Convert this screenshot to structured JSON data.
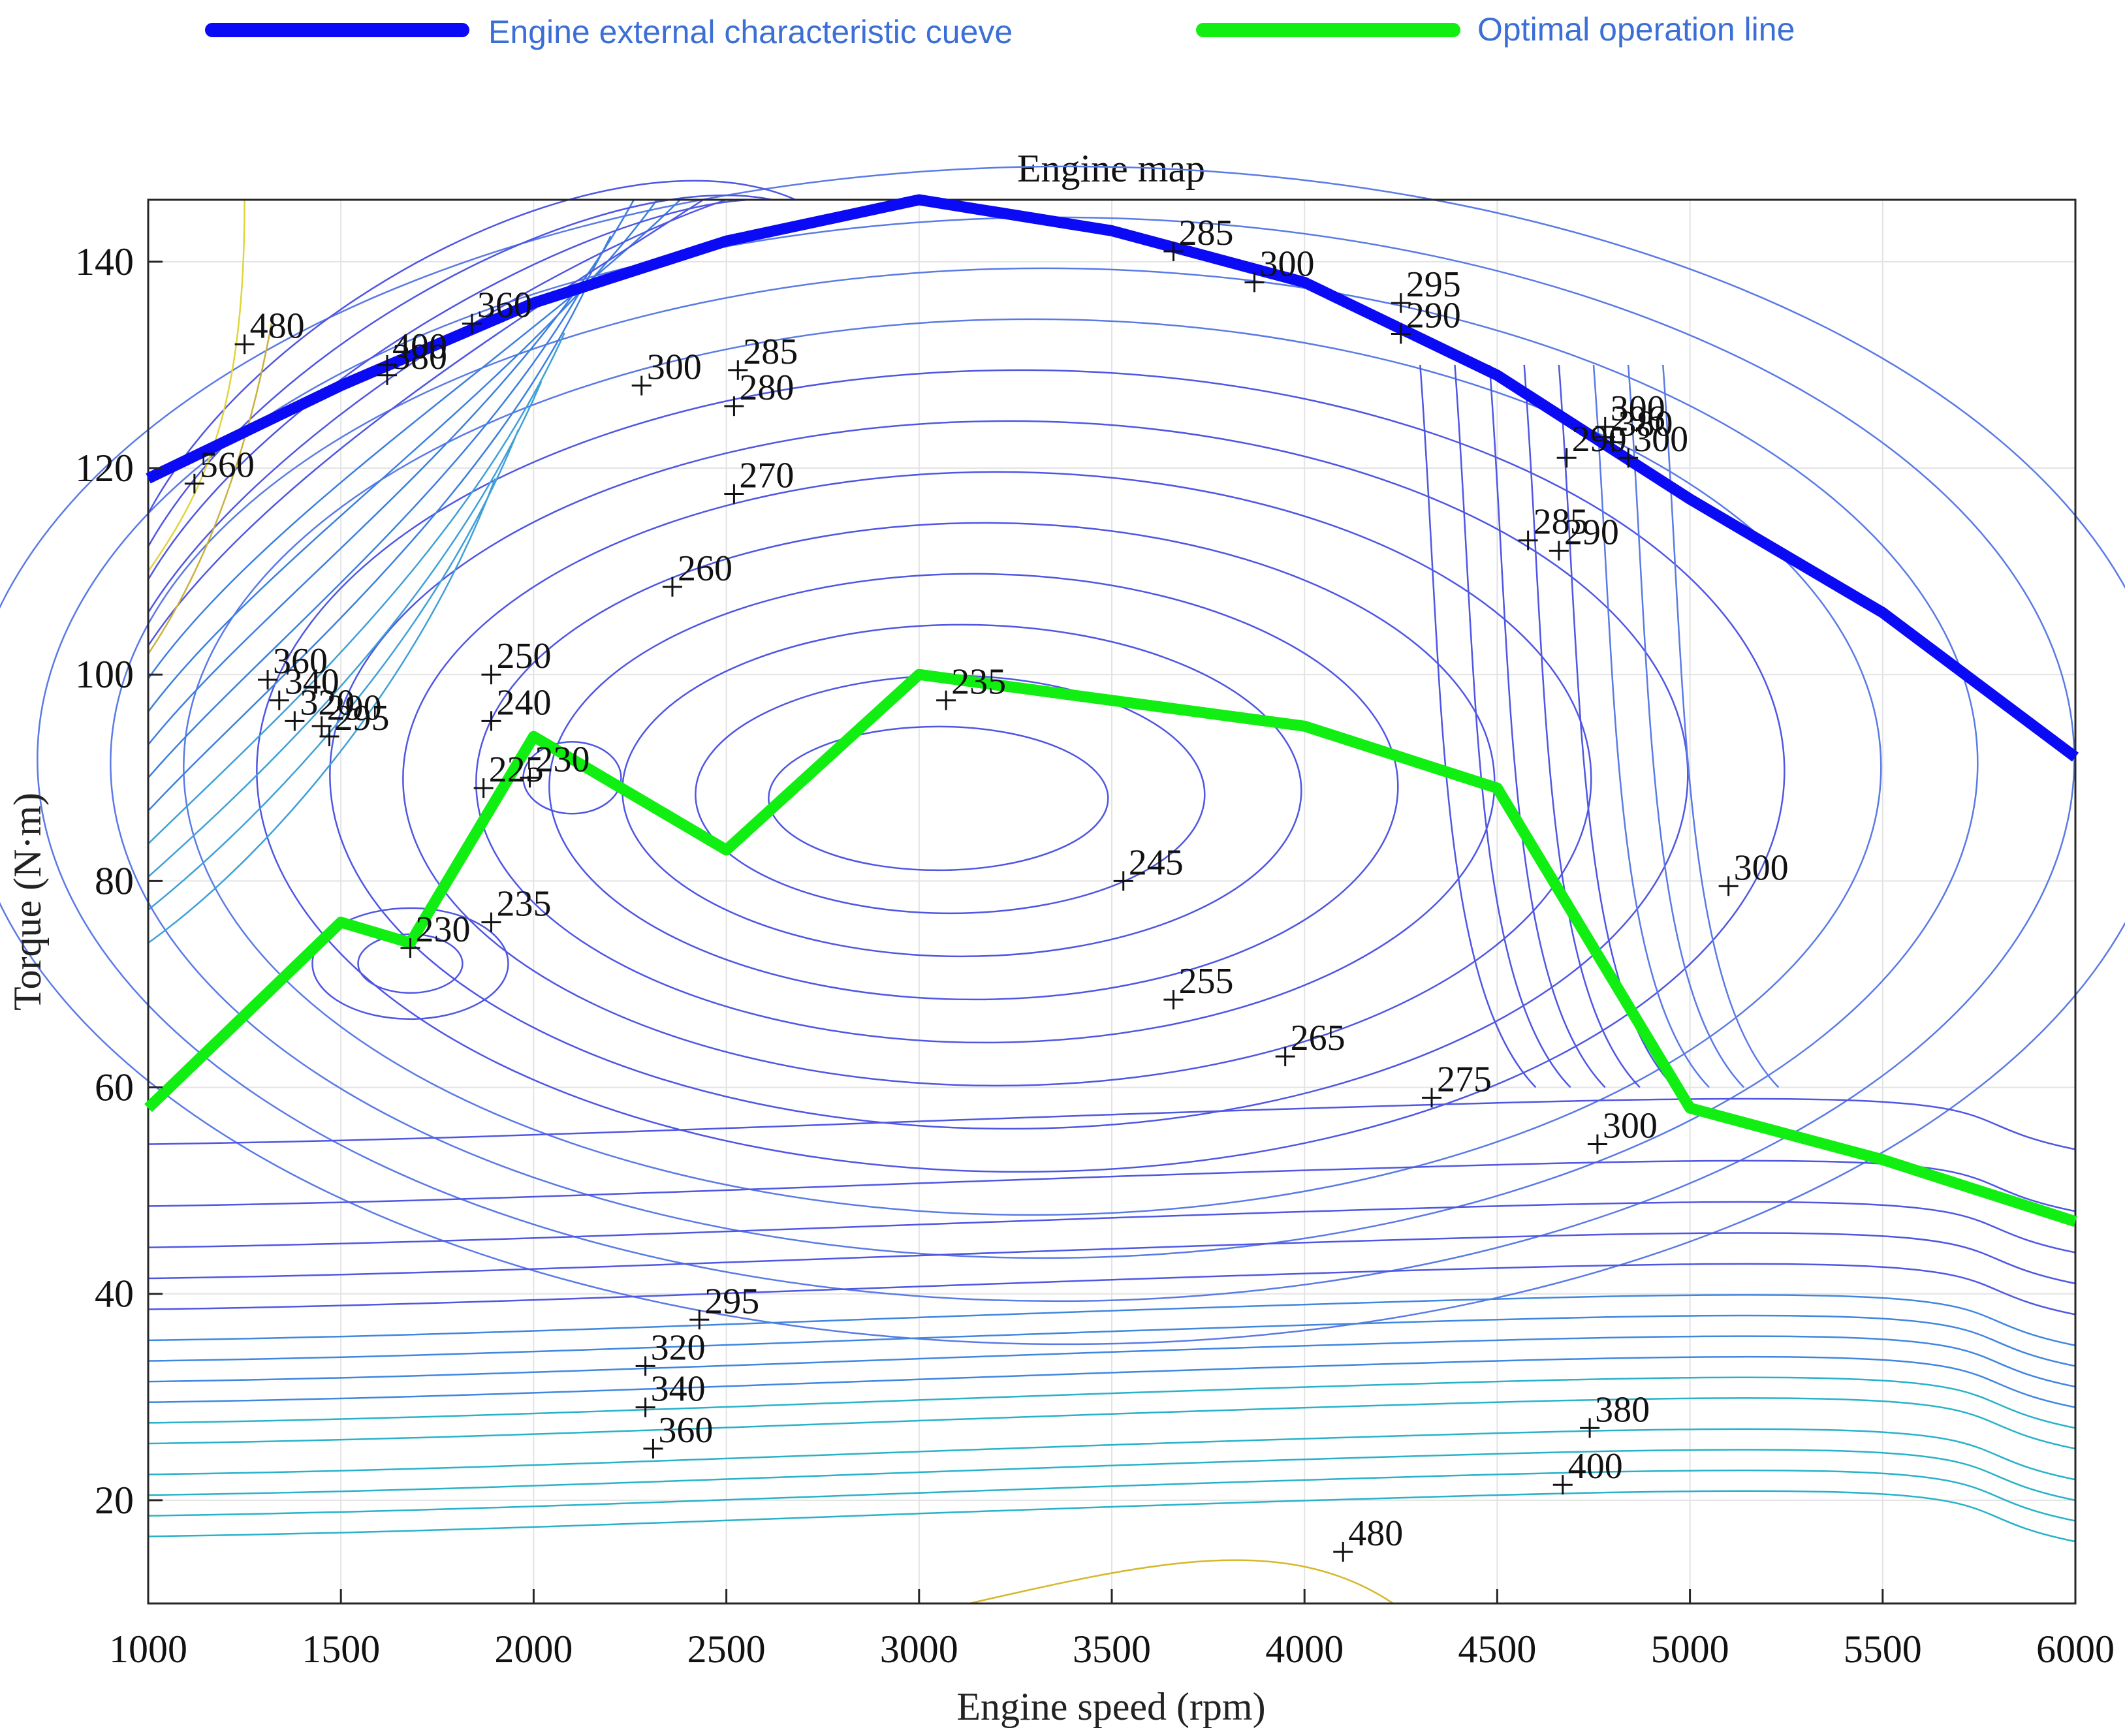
{
  "chart_data": {
    "type": "line",
    "title": "Engine map",
    "xlabel": "Engine speed (rpm)",
    "ylabel": "Torque (N·m)",
    "xlim": [
      1000,
      6000
    ],
    "ylim": [
      10,
      146
    ],
    "xticks": [
      1000,
      1500,
      2000,
      2500,
      3000,
      3500,
      4000,
      4500,
      5000,
      5500,
      6000
    ],
    "yticks": [
      20,
      40,
      60,
      80,
      100,
      120,
      140
    ],
    "grid": true,
    "legend": {
      "position": "top",
      "entries": [
        {
          "label": "Engine external characteristic cueve",
          "color": "#0a0af5"
        },
        {
          "label": "Optimal operation line",
          "color": "#11ee11"
        }
      ]
    },
    "series": [
      {
        "name": "Engine external characteristic cueve",
        "color": "#0a0af5",
        "x": [
          1000,
          1500,
          2000,
          2500,
          3000,
          3500,
          4000,
          4500,
          5000,
          5500,
          6000
        ],
        "y": [
          119,
          128,
          136,
          142,
          146,
          143,
          138,
          129,
          117,
          106,
          92
        ]
      },
      {
        "name": "Optimal operation line",
        "color": "#11ee11",
        "x": [
          1000,
          1500,
          1680,
          2000,
          2500,
          3000,
          4000,
          4500,
          5000,
          5500,
          6000
        ],
        "y": [
          58,
          76,
          74,
          94,
          83,
          100,
          95,
          89,
          58,
          53,
          47
        ]
      }
    ],
    "contour_labels": [
      {
        "x": 1250,
        "y": 132,
        "text": "480"
      },
      {
        "x": 1120,
        "y": 118.5,
        "text": "560"
      },
      {
        "x": 1620,
        "y": 130,
        "text": "400"
      },
      {
        "x": 1620,
        "y": 129,
        "text": "380"
      },
      {
        "x": 1840,
        "y": 134,
        "text": "360"
      },
      {
        "x": 2280,
        "y": 128,
        "text": "300"
      },
      {
        "x": 2530,
        "y": 129.5,
        "text": "285"
      },
      {
        "x": 2520,
        "y": 126,
        "text": "280"
      },
      {
        "x": 2520,
        "y": 117.5,
        "text": "270"
      },
      {
        "x": 2360,
        "y": 108.5,
        "text": "260"
      },
      {
        "x": 3660,
        "y": 141,
        "text": "285"
      },
      {
        "x": 3870,
        "y": 138,
        "text": "300"
      },
      {
        "x": 4250,
        "y": 136,
        "text": "295"
      },
      {
        "x": 4250,
        "y": 133,
        "text": "290"
      },
      {
        "x": 4780,
        "y": 124,
        "text": "300"
      },
      {
        "x": 4780,
        "y": 123,
        "text": "296"
      },
      {
        "x": 4800,
        "y": 122.5,
        "text": "380"
      },
      {
        "x": 4840,
        "y": 121,
        "text": "300"
      },
      {
        "x": 4680,
        "y": 121,
        "text": "290"
      },
      {
        "x": 4580,
        "y": 113,
        "text": "285"
      },
      {
        "x": 4660,
        "y": 112,
        "text": "290"
      },
      {
        "x": 1310,
        "y": 99.5,
        "text": "360"
      },
      {
        "x": 1340,
        "y": 97.5,
        "text": "340"
      },
      {
        "x": 1380,
        "y": 95.5,
        "text": "320"
      },
      {
        "x": 1450,
        "y": 95,
        "text": "290"
      },
      {
        "x": 1470,
        "y": 94,
        "text": "295"
      },
      {
        "x": 1890,
        "y": 100,
        "text": "250"
      },
      {
        "x": 1890,
        "y": 95.5,
        "text": "240"
      },
      {
        "x": 1870,
        "y": 89,
        "text": "225"
      },
      {
        "x": 1990,
        "y": 90,
        "text": "230"
      },
      {
        "x": 3070,
        "y": 97.5,
        "text": "235"
      },
      {
        "x": 1680,
        "y": 73.5,
        "text": "230"
      },
      {
        "x": 1890,
        "y": 76,
        "text": "235"
      },
      {
        "x": 3530,
        "y": 80,
        "text": "245"
      },
      {
        "x": 3660,
        "y": 68.5,
        "text": "255"
      },
      {
        "x": 3950,
        "y": 63,
        "text": "265"
      },
      {
        "x": 4330,
        "y": 59,
        "text": "275"
      },
      {
        "x": 4760,
        "y": 54.5,
        "text": "300"
      },
      {
        "x": 5100,
        "y": 79.5,
        "text": "300"
      },
      {
        "x": 2430,
        "y": 37.5,
        "text": "295"
      },
      {
        "x": 2290,
        "y": 33,
        "text": "320"
      },
      {
        "x": 2290,
        "y": 29,
        "text": "340"
      },
      {
        "x": 2310,
        "y": 25,
        "text": "360"
      },
      {
        "x": 4740,
        "y": 27,
        "text": "380"
      },
      {
        "x": 4670,
        "y": 21.5,
        "text": "400"
      },
      {
        "x": 4100,
        "y": 15,
        "text": "480"
      }
    ]
  }
}
